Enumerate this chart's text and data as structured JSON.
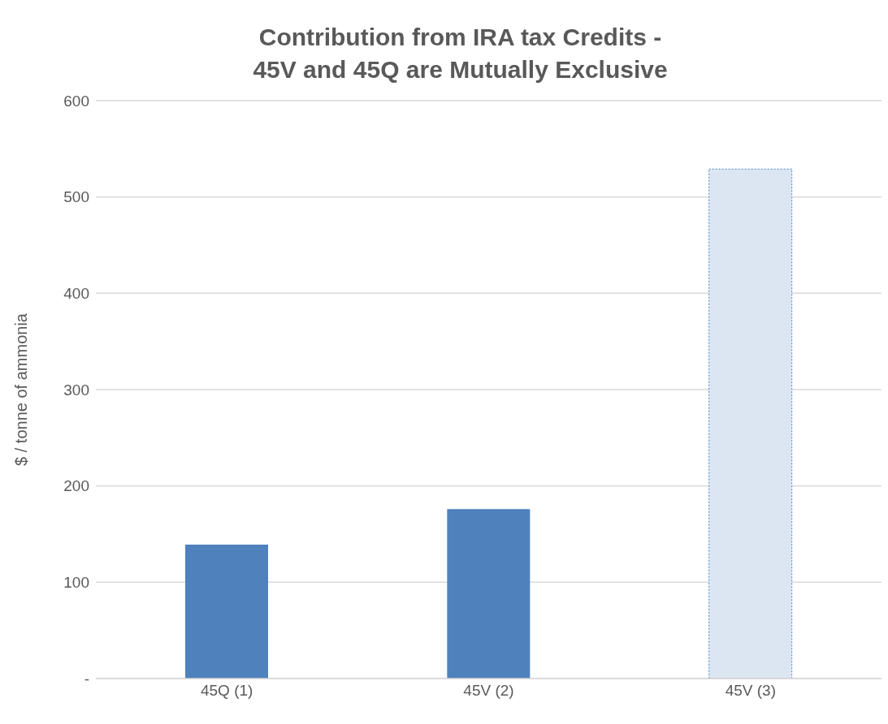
{
  "chart_data": {
    "type": "bar",
    "title": "Contribution from IRA tax Credits -\n45V and 45Q are Mutually Exclusive",
    "ylabel": "$ / tonne of ammonia",
    "categories": [
      "45Q (1)",
      "45V (2)",
      "45V (3)"
    ],
    "values": [
      139,
      176,
      529
    ],
    "colors": [
      "#4f81bd",
      "#4f81bd",
      "#dce6f2"
    ],
    "ylim": [
      0,
      600
    ],
    "yticks": [
      {
        "value": 0,
        "label": "-"
      },
      100,
      200,
      300,
      400,
      500,
      600
    ],
    "grid": "y"
  }
}
